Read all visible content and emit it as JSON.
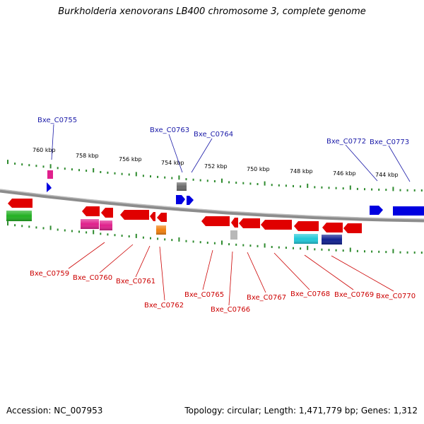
{
  "title": "Burkholderia xenovorans LB400 chromosome 3, complete genome",
  "accession_text": "Accession: NC_007953",
  "summary_text": "Topology: circular; Length: 1,471,779 bp; Genes: 1,312",
  "scale_labels": [
    "760 kbp",
    "758 kbp",
    "756 kbp",
    "754 kbp",
    "752 kbp",
    "750 kbp",
    "748 kbp",
    "746 kbp",
    "744 kbp"
  ],
  "gene_labels_top": [
    "Bxe_C0755",
    "Bxe_C0763",
    "Bxe_C0764",
    "Bxe_C0772",
    "Bxe_C0773"
  ],
  "gene_labels_bottom": [
    "Bxe_C0759",
    "Bxe_C0760",
    "Bxe_C0761",
    "Bxe_C0762",
    "Bxe_C0765",
    "Bxe_C0766",
    "Bxe_C0767",
    "Bxe_C0768",
    "Bxe_C0769",
    "Bxe_C0770"
  ],
  "colors": {
    "backbone": "#8c8c8c",
    "ruler": "#2e8b2e",
    "forward_label": "#1a1aa8",
    "reverse_label": "#cc0000",
    "red_gene": "#e00000",
    "blue_gene": "#0000e0",
    "green_gene": "#22b022",
    "magenta_gene": "#e0208c",
    "orange_gene": "#f08010",
    "cyan_gene": "#20c8d8",
    "grey_gene": "#6a6a6a",
    "light_grey_gene": "#b8b8b8",
    "navy_gene": "#102090"
  }
}
